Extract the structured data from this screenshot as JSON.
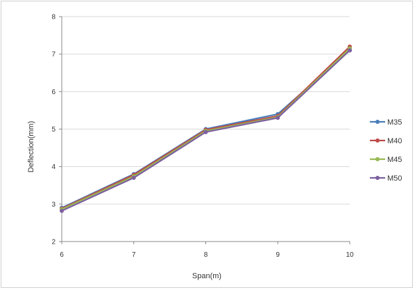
{
  "chart_data": {
    "type": "line",
    "title": "",
    "xlabel": "Span(m)",
    "ylabel": "Deflection(mm)",
    "x": [
      6,
      7,
      8,
      9,
      10
    ],
    "xlim": [
      6,
      10
    ],
    "ylim": [
      2,
      8
    ],
    "xticks": [
      "6",
      "7",
      "8",
      "9",
      "10"
    ],
    "yticks": [
      "2",
      "3",
      "4",
      "5",
      "6",
      "7",
      "8"
    ],
    "grid": true,
    "legend_position": "right",
    "series": [
      {
        "name": "M35",
        "color": "#4a7ebb",
        "values": [
          2.9,
          3.8,
          5.0,
          5.4,
          7.1
        ]
      },
      {
        "name": "M40",
        "color": "#be4b48",
        "values": [
          2.88,
          3.78,
          4.98,
          5.35,
          7.2
        ]
      },
      {
        "name": "M45",
        "color": "#98b954",
        "values": [
          2.86,
          3.74,
          4.95,
          5.32,
          7.15
        ]
      },
      {
        "name": "M50",
        "color": "#7d60a0",
        "values": [
          2.82,
          3.7,
          4.92,
          5.3,
          7.1
        ]
      }
    ]
  }
}
